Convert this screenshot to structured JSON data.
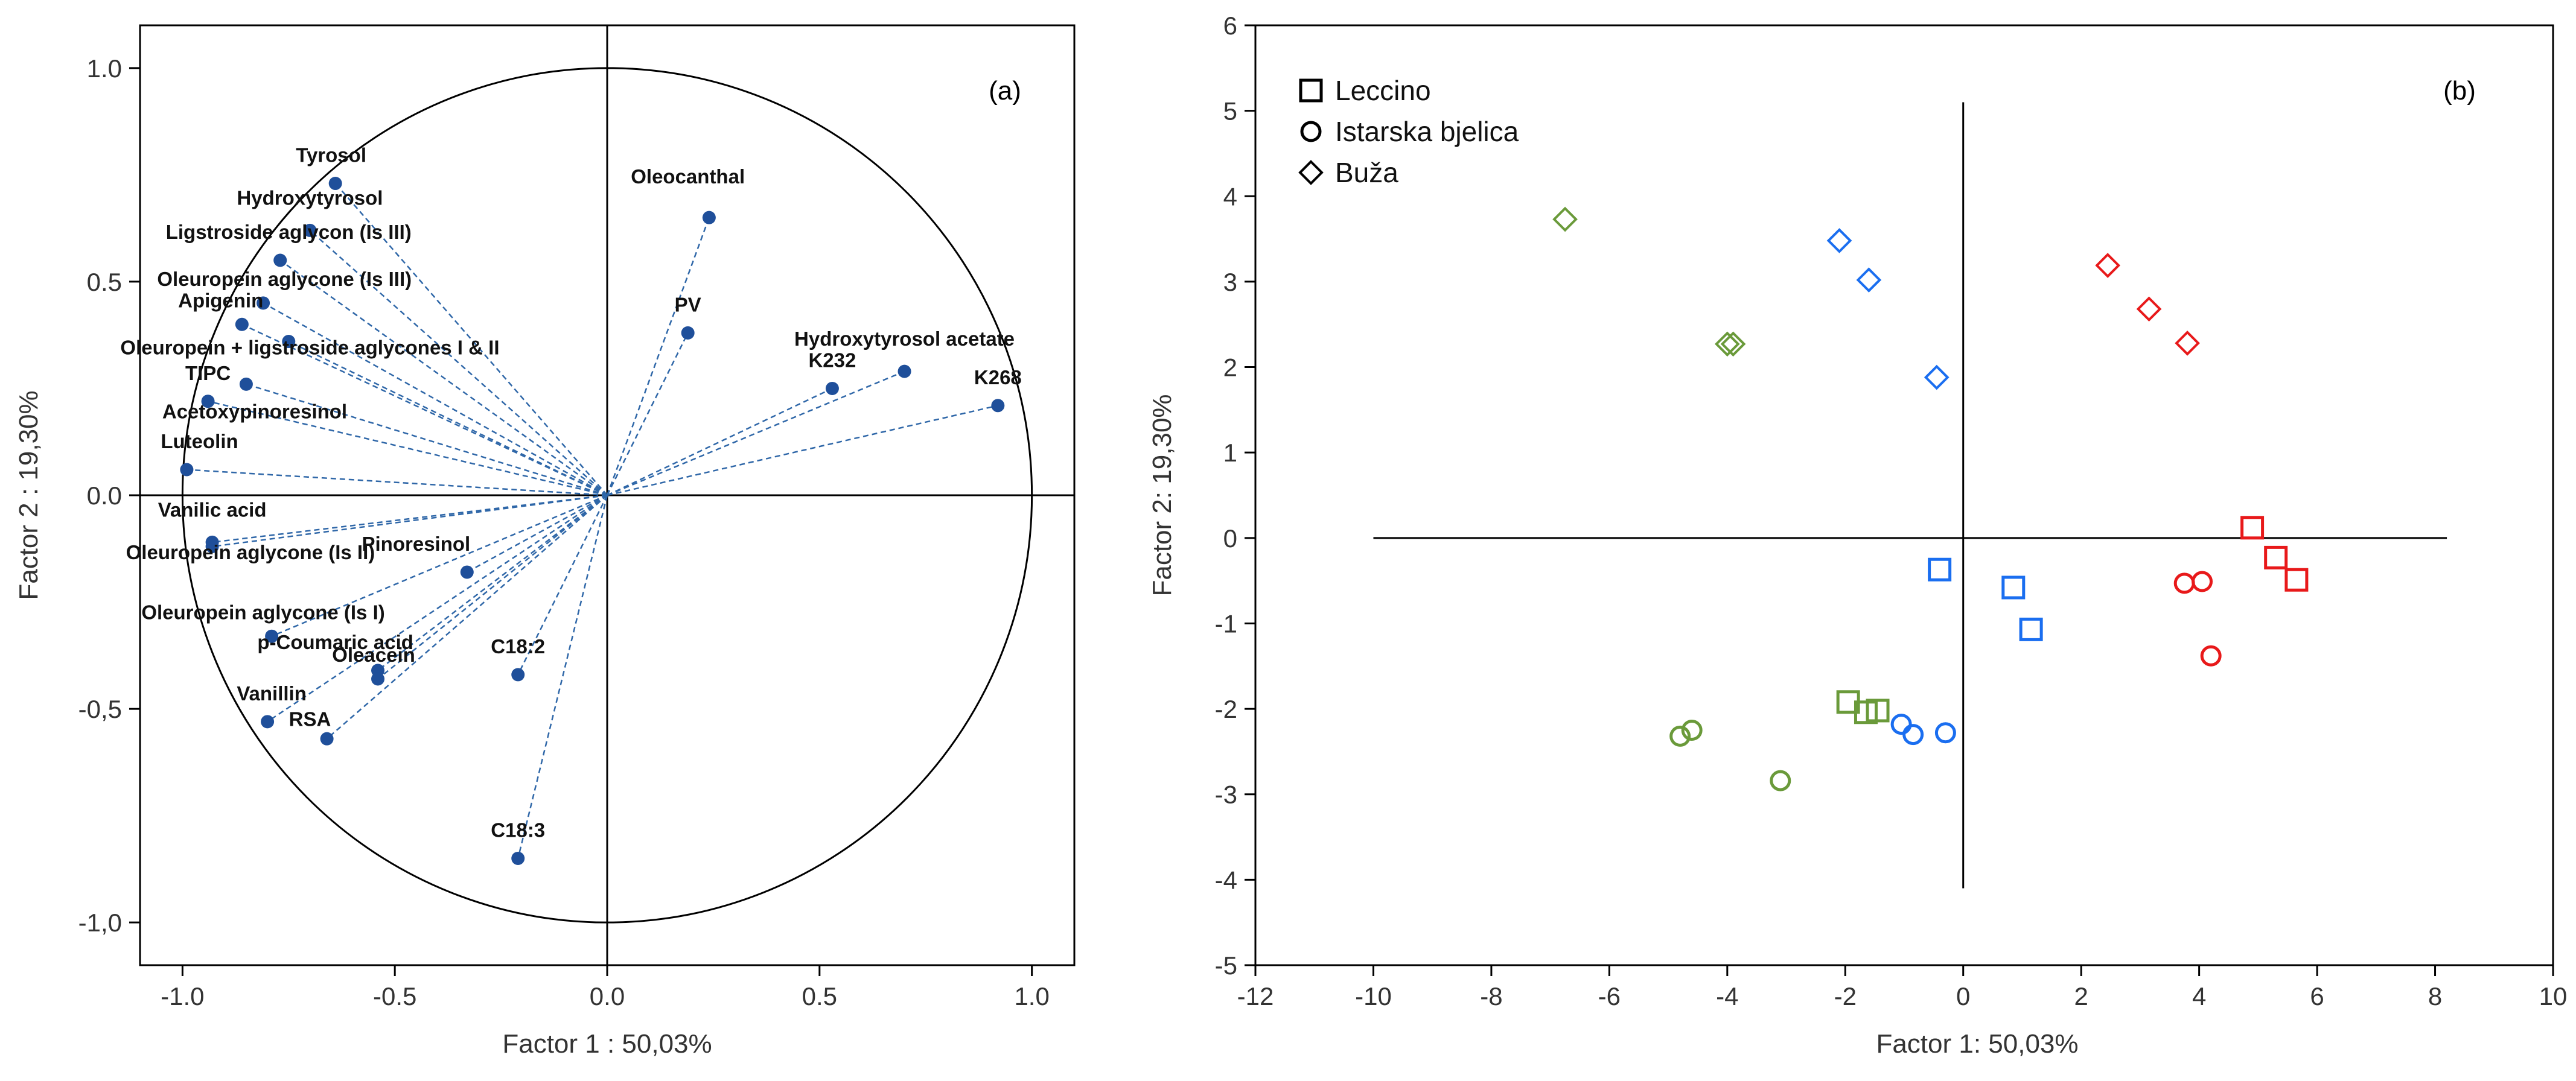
{
  "chart_data": [
    {
      "type": "scatter",
      "panel_label": "(a)",
      "xlabel": "Factor 1 : 50,03%",
      "ylabel": "Factor 2 : 19,30%",
      "xlim": [
        -1.1,
        1.1
      ],
      "ylim": [
        -1.1,
        1.1
      ],
      "x_ticks": [
        "-1.0",
        "-0.5",
        "0.0",
        "0.5",
        "1.0"
      ],
      "y_ticks": [
        "-1,0",
        "-0,5",
        "0.0",
        "0.5",
        "1.0"
      ],
      "unit_circle": true,
      "loadings": [
        {
          "label": "Tyrosol",
          "x": -0.64,
          "y": 0.73,
          "lx": -0.65,
          "ly": 0.78
        },
        {
          "label": "Hydroxytyrosol",
          "x": -0.7,
          "y": 0.62,
          "lx": -0.7,
          "ly": 0.68
        },
        {
          "label": "Ligstroside aglycon (Is III)",
          "x": -0.77,
          "y": 0.55,
          "lx": -0.75,
          "ly": 0.6
        },
        {
          "label": "Oleuropein aglycone (Is III)",
          "x": -0.81,
          "y": 0.45,
          "lx": -0.76,
          "ly": 0.49
        },
        {
          "label": "Apigenin",
          "x": -0.86,
          "y": 0.4,
          "lx": -0.91,
          "ly": 0.44
        },
        {
          "label": "Oleuropein + ligstroside aglycones I & II",
          "x": -0.75,
          "y": 0.36,
          "lx": -0.7,
          "ly": 0.33
        },
        {
          "label": "TIPC",
          "x": -0.85,
          "y": 0.26,
          "lx": -0.94,
          "ly": 0.27
        },
        {
          "label": "Acetoxypinoresinol",
          "x": -0.94,
          "y": 0.22,
          "lx": -0.83,
          "ly": 0.18
        },
        {
          "label": "Luteolin",
          "x": -0.99,
          "y": 0.06,
          "lx": -0.96,
          "ly": 0.11
        },
        {
          "label": "Vanilic acid",
          "x": -0.93,
          "y": -0.11,
          "lx": -0.93,
          "ly": -0.05
        },
        {
          "label": "Oleuropein aglycone (Is II)",
          "x": -0.93,
          "y": -0.12,
          "lx": -0.84,
          "ly": -0.15
        },
        {
          "label": "Pinoresinol",
          "x": -0.33,
          "y": -0.18,
          "lx": -0.45,
          "ly": -0.13
        },
        {
          "label": "Oleuropein aglycone (Is I)",
          "x": -0.79,
          "y": -0.33,
          "lx": -0.81,
          "ly": -0.29
        },
        {
          "label": "p-Coumaric acid",
          "x": -0.54,
          "y": -0.41,
          "lx": -0.64,
          "ly": -0.36
        },
        {
          "label": "Oleacein",
          "x": -0.54,
          "y": -0.43,
          "lx": -0.55,
          "ly": -0.39
        },
        {
          "label": "Vanillin",
          "x": -0.8,
          "y": -0.53,
          "lx": -0.79,
          "ly": -0.48
        },
        {
          "label": "RSA",
          "x": -0.66,
          "y": -0.57,
          "lx": -0.7,
          "ly": -0.54
        },
        {
          "label": "C18:2",
          "x": -0.21,
          "y": -0.42,
          "lx": -0.21,
          "ly": -0.37
        },
        {
          "label": "C18:3",
          "x": -0.21,
          "y": -0.85,
          "lx": -0.21,
          "ly": -0.8
        },
        {
          "label": "Oleocanthal",
          "x": 0.24,
          "y": 0.65,
          "lx": 0.19,
          "ly": 0.73
        },
        {
          "label": "PV",
          "x": 0.19,
          "y": 0.38,
          "lx": 0.19,
          "ly": 0.43
        },
        {
          "label": "Hydroxytyrosol acetate",
          "x": 0.7,
          "y": 0.29,
          "lx": 0.7,
          "ly": 0.35
        },
        {
          "label": "K232",
          "x": 0.53,
          "y": 0.25,
          "lx": 0.53,
          "ly": 0.3
        },
        {
          "label": "K268",
          "x": 0.92,
          "y": 0.21,
          "lx": 0.92,
          "ly": 0.26
        }
      ]
    },
    {
      "type": "scatter",
      "panel_label": "(b)",
      "xlabel": "Factor 1: 50,03%",
      "ylabel": "Factor 2: 19,30%",
      "xlim": [
        -12,
        10
      ],
      "ylim": [
        -5,
        6
      ],
      "x_ticks": [
        -12,
        -10,
        -8,
        -6,
        -4,
        -2,
        0,
        2,
        4,
        6,
        8,
        10
      ],
      "y_ticks": [
        -5,
        -4,
        -3,
        -2,
        -1,
        0,
        1,
        2,
        3,
        4,
        5,
        6
      ],
      "axis_lines": {
        "x_from": -10,
        "x_to": 8.2,
        "y_from": -4.1,
        "y_to": 5.1
      },
      "legend": [
        {
          "label": "Leccino",
          "shape": "square"
        },
        {
          "label": "Istarska bjelica",
          "shape": "circle"
        },
        {
          "label": "Buža",
          "shape": "diamond"
        }
      ],
      "group_colors": {
        "green": "#6a9a3a",
        "blue": "#1a6ef0",
        "red": "#e8191a"
      },
      "points": [
        {
          "shape": "square",
          "color": "blue",
          "x": -0.4,
          "y": -0.37
        },
        {
          "shape": "square",
          "color": "blue",
          "x": 0.85,
          "y": -0.58
        },
        {
          "shape": "square",
          "color": "blue",
          "x": 1.15,
          "y": -1.07
        },
        {
          "shape": "square",
          "color": "red",
          "x": 4.9,
          "y": 0.12
        },
        {
          "shape": "square",
          "color": "red",
          "x": 5.3,
          "y": -0.23
        },
        {
          "shape": "square",
          "color": "red",
          "x": 5.65,
          "y": -0.49
        },
        {
          "shape": "square",
          "color": "green",
          "x": -1.95,
          "y": -1.92
        },
        {
          "shape": "square",
          "color": "green",
          "x": -1.65,
          "y": -2.04
        },
        {
          "shape": "square",
          "color": "green",
          "x": -1.45,
          "y": -2.02
        },
        {
          "shape": "circle",
          "color": "blue",
          "x": -1.05,
          "y": -2.18
        },
        {
          "shape": "circle",
          "color": "blue",
          "x": -0.85,
          "y": -2.3
        },
        {
          "shape": "circle",
          "color": "blue",
          "x": -0.3,
          "y": -2.28
        },
        {
          "shape": "circle",
          "color": "red",
          "x": 3.75,
          "y": -0.53
        },
        {
          "shape": "circle",
          "color": "red",
          "x": 4.05,
          "y": -0.51
        },
        {
          "shape": "circle",
          "color": "red",
          "x": 4.2,
          "y": -1.38
        },
        {
          "shape": "circle",
          "color": "green",
          "x": -4.8,
          "y": -2.32
        },
        {
          "shape": "circle",
          "color": "green",
          "x": -4.6,
          "y": -2.25
        },
        {
          "shape": "circle",
          "color": "green",
          "x": -3.1,
          "y": -2.84
        },
        {
          "shape": "diamond",
          "color": "green",
          "x": -6.75,
          "y": 3.73
        },
        {
          "shape": "diamond",
          "color": "green",
          "x": -4.0,
          "y": 2.27
        },
        {
          "shape": "diamond",
          "color": "green",
          "x": -3.9,
          "y": 2.27
        },
        {
          "shape": "diamond",
          "color": "blue",
          "x": -2.1,
          "y": 3.48
        },
        {
          "shape": "diamond",
          "color": "blue",
          "x": -1.6,
          "y": 3.02
        },
        {
          "shape": "diamond",
          "color": "blue",
          "x": -0.45,
          "y": 1.88
        },
        {
          "shape": "diamond",
          "color": "red",
          "x": 2.45,
          "y": 3.19
        },
        {
          "shape": "diamond",
          "color": "red",
          "x": 3.15,
          "y": 2.68
        },
        {
          "shape": "diamond",
          "color": "red",
          "x": 3.8,
          "y": 2.28
        }
      ]
    }
  ]
}
